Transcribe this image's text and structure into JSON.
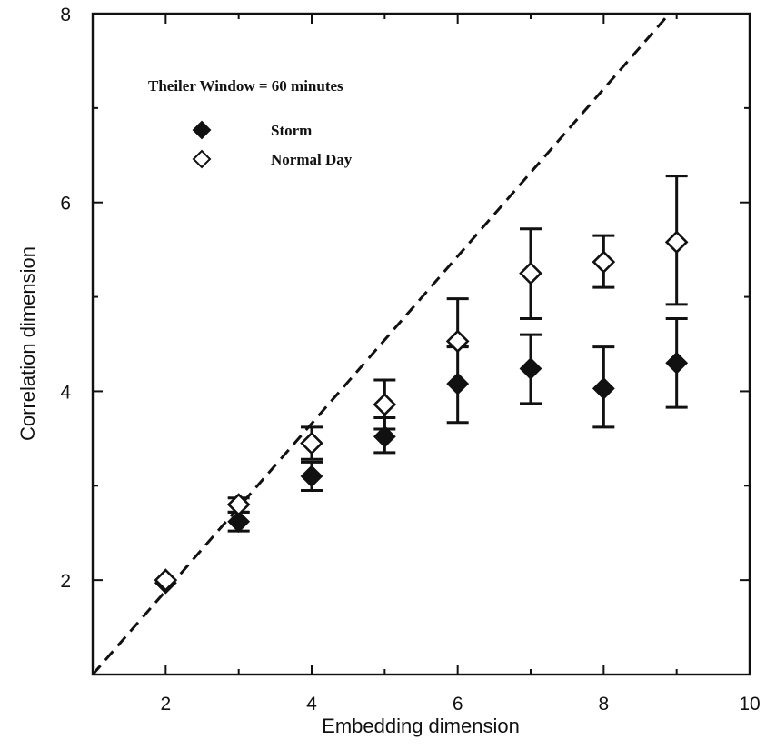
{
  "chart_data": {
    "type": "scatter",
    "title": "",
    "annotation": "Theiler Window = 60 minutes",
    "xlabel": "Embedding dimension",
    "ylabel": "Correlation dimension",
    "xlim": [
      1,
      10
    ],
    "ylim": [
      1,
      8
    ],
    "xticks": [
      2,
      4,
      6,
      8,
      10
    ],
    "yticks": [
      2,
      4,
      6,
      8
    ],
    "grid": false,
    "legend_position": "top-left",
    "reference_line": {
      "style": "dashed",
      "x": [
        1,
        8.9
      ],
      "y": [
        1,
        8
      ]
    },
    "series": [
      {
        "name": "Storm",
        "marker": "filled-diamond",
        "color": "#111111",
        "x": [
          2,
          3,
          4,
          5,
          6,
          7,
          8,
          9
        ],
        "y": [
          1.97,
          2.62,
          3.1,
          3.52,
          4.08,
          4.24,
          4.03,
          4.3
        ],
        "err_low": [
          1.95,
          2.52,
          2.95,
          3.35,
          3.67,
          3.87,
          3.62,
          3.83
        ],
        "err_high": [
          2.0,
          2.72,
          3.25,
          3.72,
          4.48,
          4.6,
          4.47,
          4.77
        ]
      },
      {
        "name": "Normal Day",
        "marker": "open-diamond",
        "color": "#111111",
        "x": [
          2,
          3,
          4,
          5,
          6,
          7,
          8,
          9
        ],
        "y": [
          2.0,
          2.8,
          3.45,
          3.86,
          4.53,
          5.25,
          5.37,
          5.58
        ],
        "err_low": [
          1.97,
          2.72,
          3.28,
          3.6,
          4.47,
          4.77,
          5.1,
          4.92
        ],
        "err_high": [
          2.03,
          2.87,
          3.62,
          4.12,
          4.98,
          5.72,
          5.65,
          6.28
        ]
      }
    ]
  }
}
